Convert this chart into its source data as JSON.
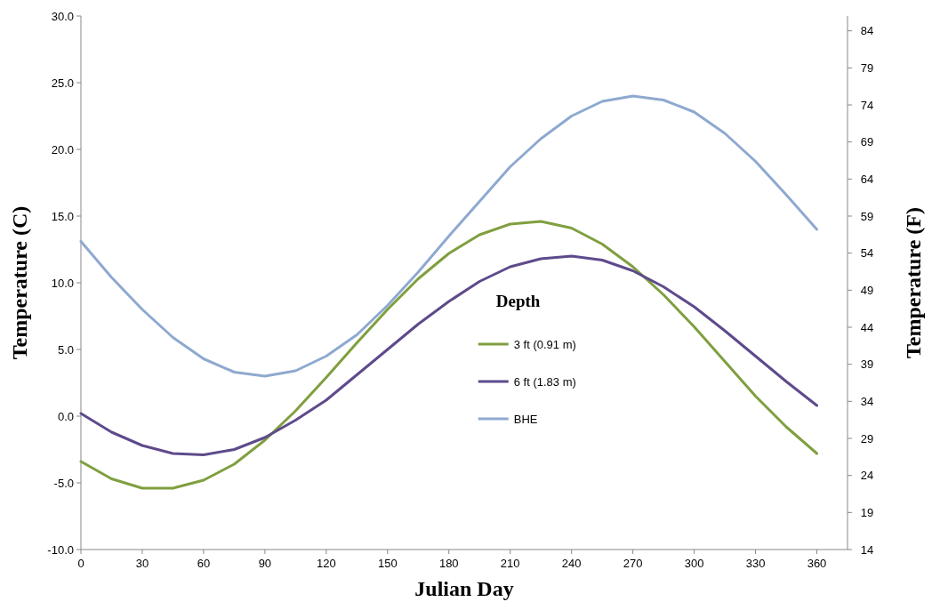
{
  "chart_data": {
    "type": "line",
    "xlabel": "Julian Day",
    "ylabel": "Temperature (C)",
    "y2label": "Temperature (F)",
    "legend_title": "Depth",
    "legend": "right",
    "grid": false,
    "marker": "none",
    "line_style": "solid",
    "x": [
      0,
      15,
      30,
      45,
      60,
      75,
      90,
      105,
      120,
      135,
      150,
      165,
      180,
      195,
      210,
      225,
      240,
      255,
      270,
      285,
      300,
      315,
      330,
      345,
      360
    ],
    "xlim": [
      0,
      375
    ],
    "xticks": [
      0,
      30,
      60,
      90,
      120,
      150,
      180,
      210,
      240,
      270,
      300,
      330,
      360
    ],
    "ylim": [
      -10,
      30
    ],
    "yticks": [
      {
        "value": -10,
        "label": "-10.0"
      },
      {
        "value": -5,
        "label": "-5.0"
      },
      {
        "value": 0,
        "label": "0.0"
      },
      {
        "value": 5,
        "label": "5.0"
      },
      {
        "value": 10,
        "label": "10.0"
      },
      {
        "value": 15,
        "label": "15.0"
      },
      {
        "value": 20,
        "label": "20.0"
      },
      {
        "value": 25,
        "label": "25.0"
      },
      {
        "value": 30,
        "label": "30.0"
      }
    ],
    "y2lim": [
      14,
      86
    ],
    "y2ticks": [
      14,
      19,
      24,
      29,
      34,
      39,
      44,
      49,
      54,
      59,
      64,
      69,
      74,
      79,
      84
    ],
    "series": [
      {
        "name": "3 ft (0.91 m)",
        "color": "#7f9f3f",
        "values": [
          -3.4,
          -4.7,
          -5.4,
          -5.4,
          -4.8,
          -3.6,
          -1.8,
          0.4,
          2.9,
          5.5,
          8.0,
          10.3,
          12.2,
          13.6,
          14.4,
          14.6,
          14.1,
          12.9,
          11.2,
          9.1,
          6.7,
          4.1,
          1.5,
          -0.8,
          -2.8
        ]
      },
      {
        "name": "6 ft (1.83 m)",
        "color": "#5e4a8b",
        "values": [
          0.2,
          -1.2,
          -2.2,
          -2.8,
          -2.9,
          -2.5,
          -1.6,
          -0.3,
          1.2,
          3.1,
          5.0,
          6.9,
          8.6,
          10.1,
          11.2,
          11.8,
          12.0,
          11.7,
          10.9,
          9.7,
          8.2,
          6.4,
          4.5,
          2.6,
          0.8
        ]
      },
      {
        "name": "BHE",
        "color": "#8ea9d0",
        "values": [
          13.1,
          10.4,
          8.0,
          5.9,
          4.3,
          3.3,
          3.0,
          3.4,
          4.5,
          6.1,
          8.3,
          10.8,
          13.5,
          16.1,
          18.7,
          20.8,
          22.5,
          23.6,
          24.0,
          23.7,
          22.8,
          21.2,
          19.1,
          16.6,
          14.0
        ]
      }
    ]
  }
}
